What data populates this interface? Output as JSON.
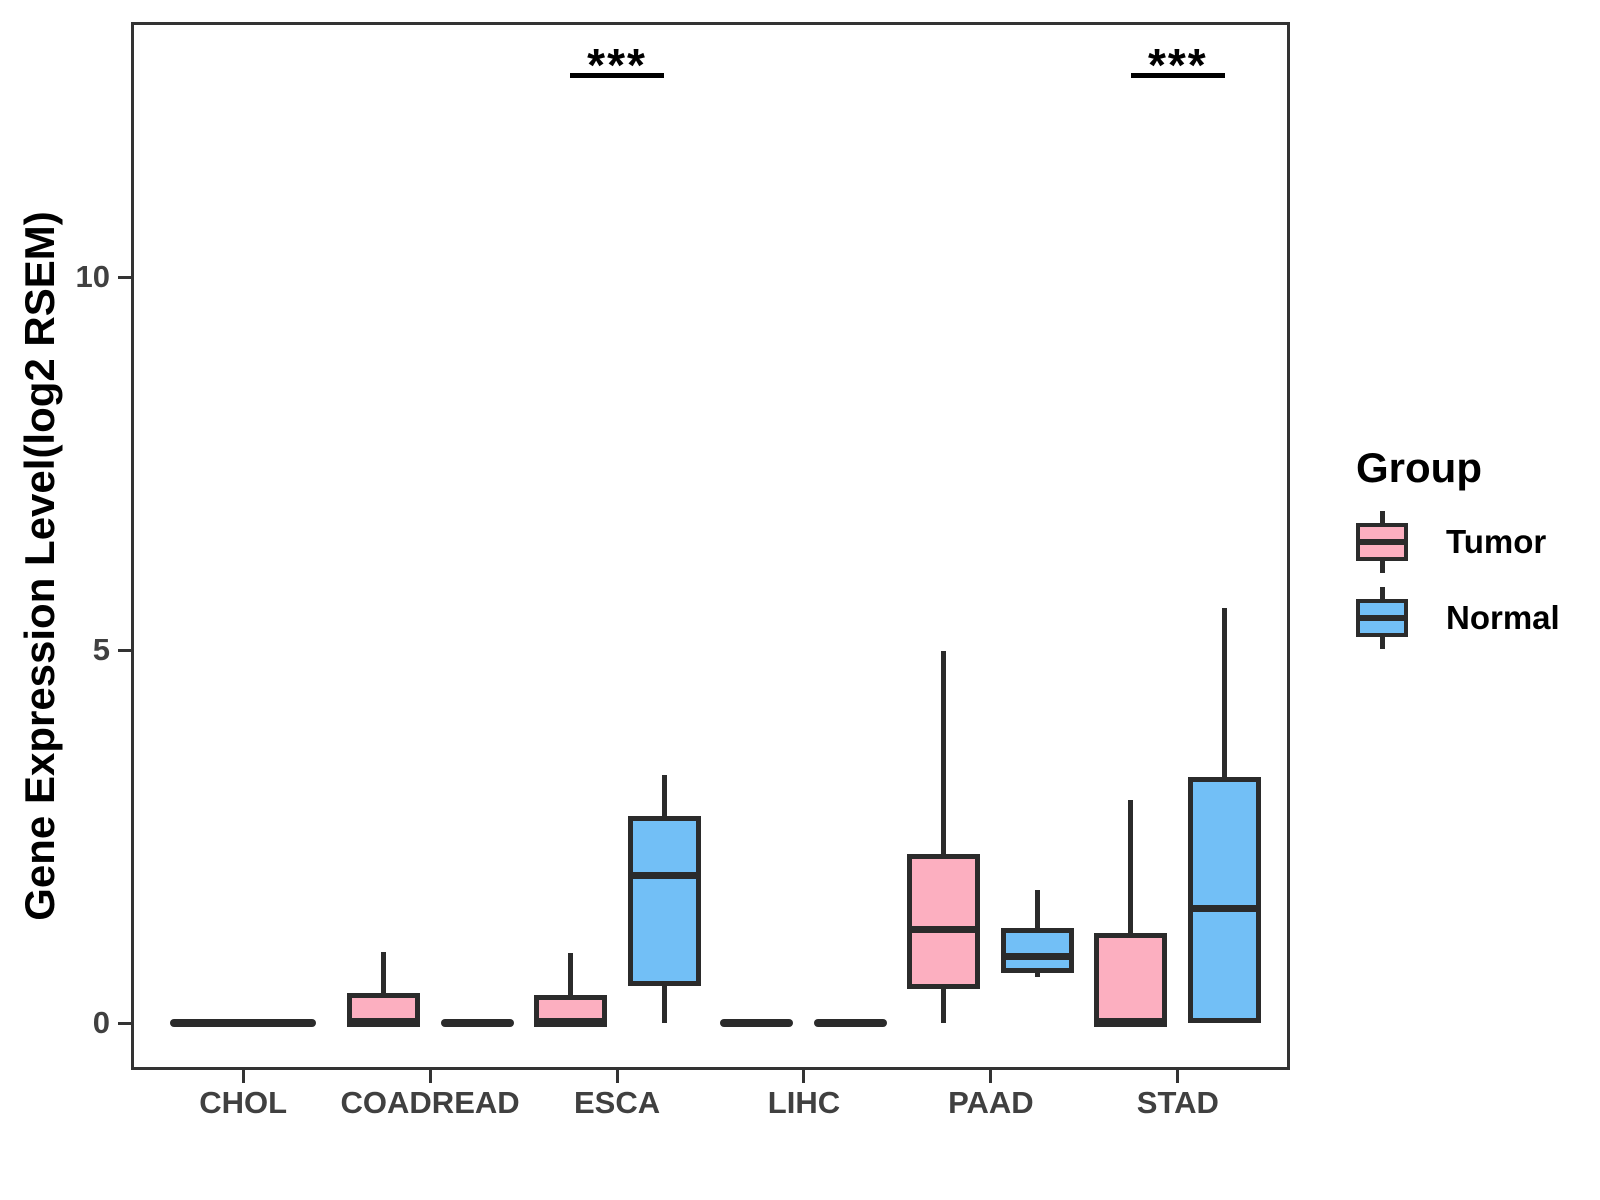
{
  "chart_data": {
    "type": "grouped_boxplot",
    "ylabel": "Gene Expression Level(log2 RSEM)",
    "xlabel": "",
    "categories": [
      "CHOL",
      "COADREAD",
      "ESCA",
      "LIHC",
      "PAAD",
      "STAD"
    ],
    "groups": [
      "Tumor",
      "Normal"
    ],
    "colors": {
      "Tumor": "#FCAFC0",
      "Normal": "#72BFF6",
      "stroke": "#2b2b2b"
    },
    "yticks": [
      0,
      5,
      10
    ],
    "ylim": [
      -0.63,
      13.42
    ],
    "legend": {
      "title": "Group",
      "entries": [
        {
          "label": "Tumor"
        },
        {
          "label": "Normal"
        }
      ]
    },
    "significance": [
      {
        "category": "ESCA",
        "label": "***"
      },
      {
        "category": "STAD",
        "label": "***"
      }
    ],
    "boxes": [
      {
        "category": "CHOL",
        "group": "Tumor",
        "width": "full",
        "min": 0,
        "q1": 0,
        "median": 0,
        "q3": 0,
        "max": 0
      },
      {
        "category": "COADREAD",
        "group": "Tumor",
        "min": 0,
        "q1": 0,
        "median": 0,
        "q3": 0.4,
        "max": 0.95
      },
      {
        "category": "COADREAD",
        "group": "Normal",
        "min": 0,
        "q1": 0,
        "median": 0,
        "q3": 0,
        "max": 0
      },
      {
        "category": "ESCA",
        "group": "Tumor",
        "min": 0,
        "q1": 0,
        "median": 0,
        "q3": 0.38,
        "max": 0.94
      },
      {
        "category": "ESCA",
        "group": "Normal",
        "min": 0,
        "q1": 0.5,
        "median": 1.98,
        "q3": 2.77,
        "max": 3.32
      },
      {
        "category": "LIHC",
        "group": "Tumor",
        "min": 0,
        "q1": 0,
        "median": 0,
        "q3": 0,
        "max": 0
      },
      {
        "category": "LIHC",
        "group": "Normal",
        "min": 0,
        "q1": 0,
        "median": 0,
        "q3": 0,
        "max": 0
      },
      {
        "category": "PAAD",
        "group": "Tumor",
        "min": 0,
        "q1": 0.46,
        "median": 1.26,
        "q3": 2.27,
        "max": 4.98
      },
      {
        "category": "PAAD",
        "group": "Normal",
        "min": 0.62,
        "q1": 0.67,
        "median": 0.89,
        "q3": 1.28,
        "max": 1.78
      },
      {
        "category": "STAD",
        "group": "Tumor",
        "min": 0,
        "q1": 0,
        "median": 0,
        "q3": 1.2,
        "max": 2.99
      },
      {
        "category": "STAD",
        "group": "Normal",
        "min": 0,
        "q1": 0,
        "median": 1.54,
        "q3": 3.3,
        "max": 5.56
      }
    ]
  }
}
